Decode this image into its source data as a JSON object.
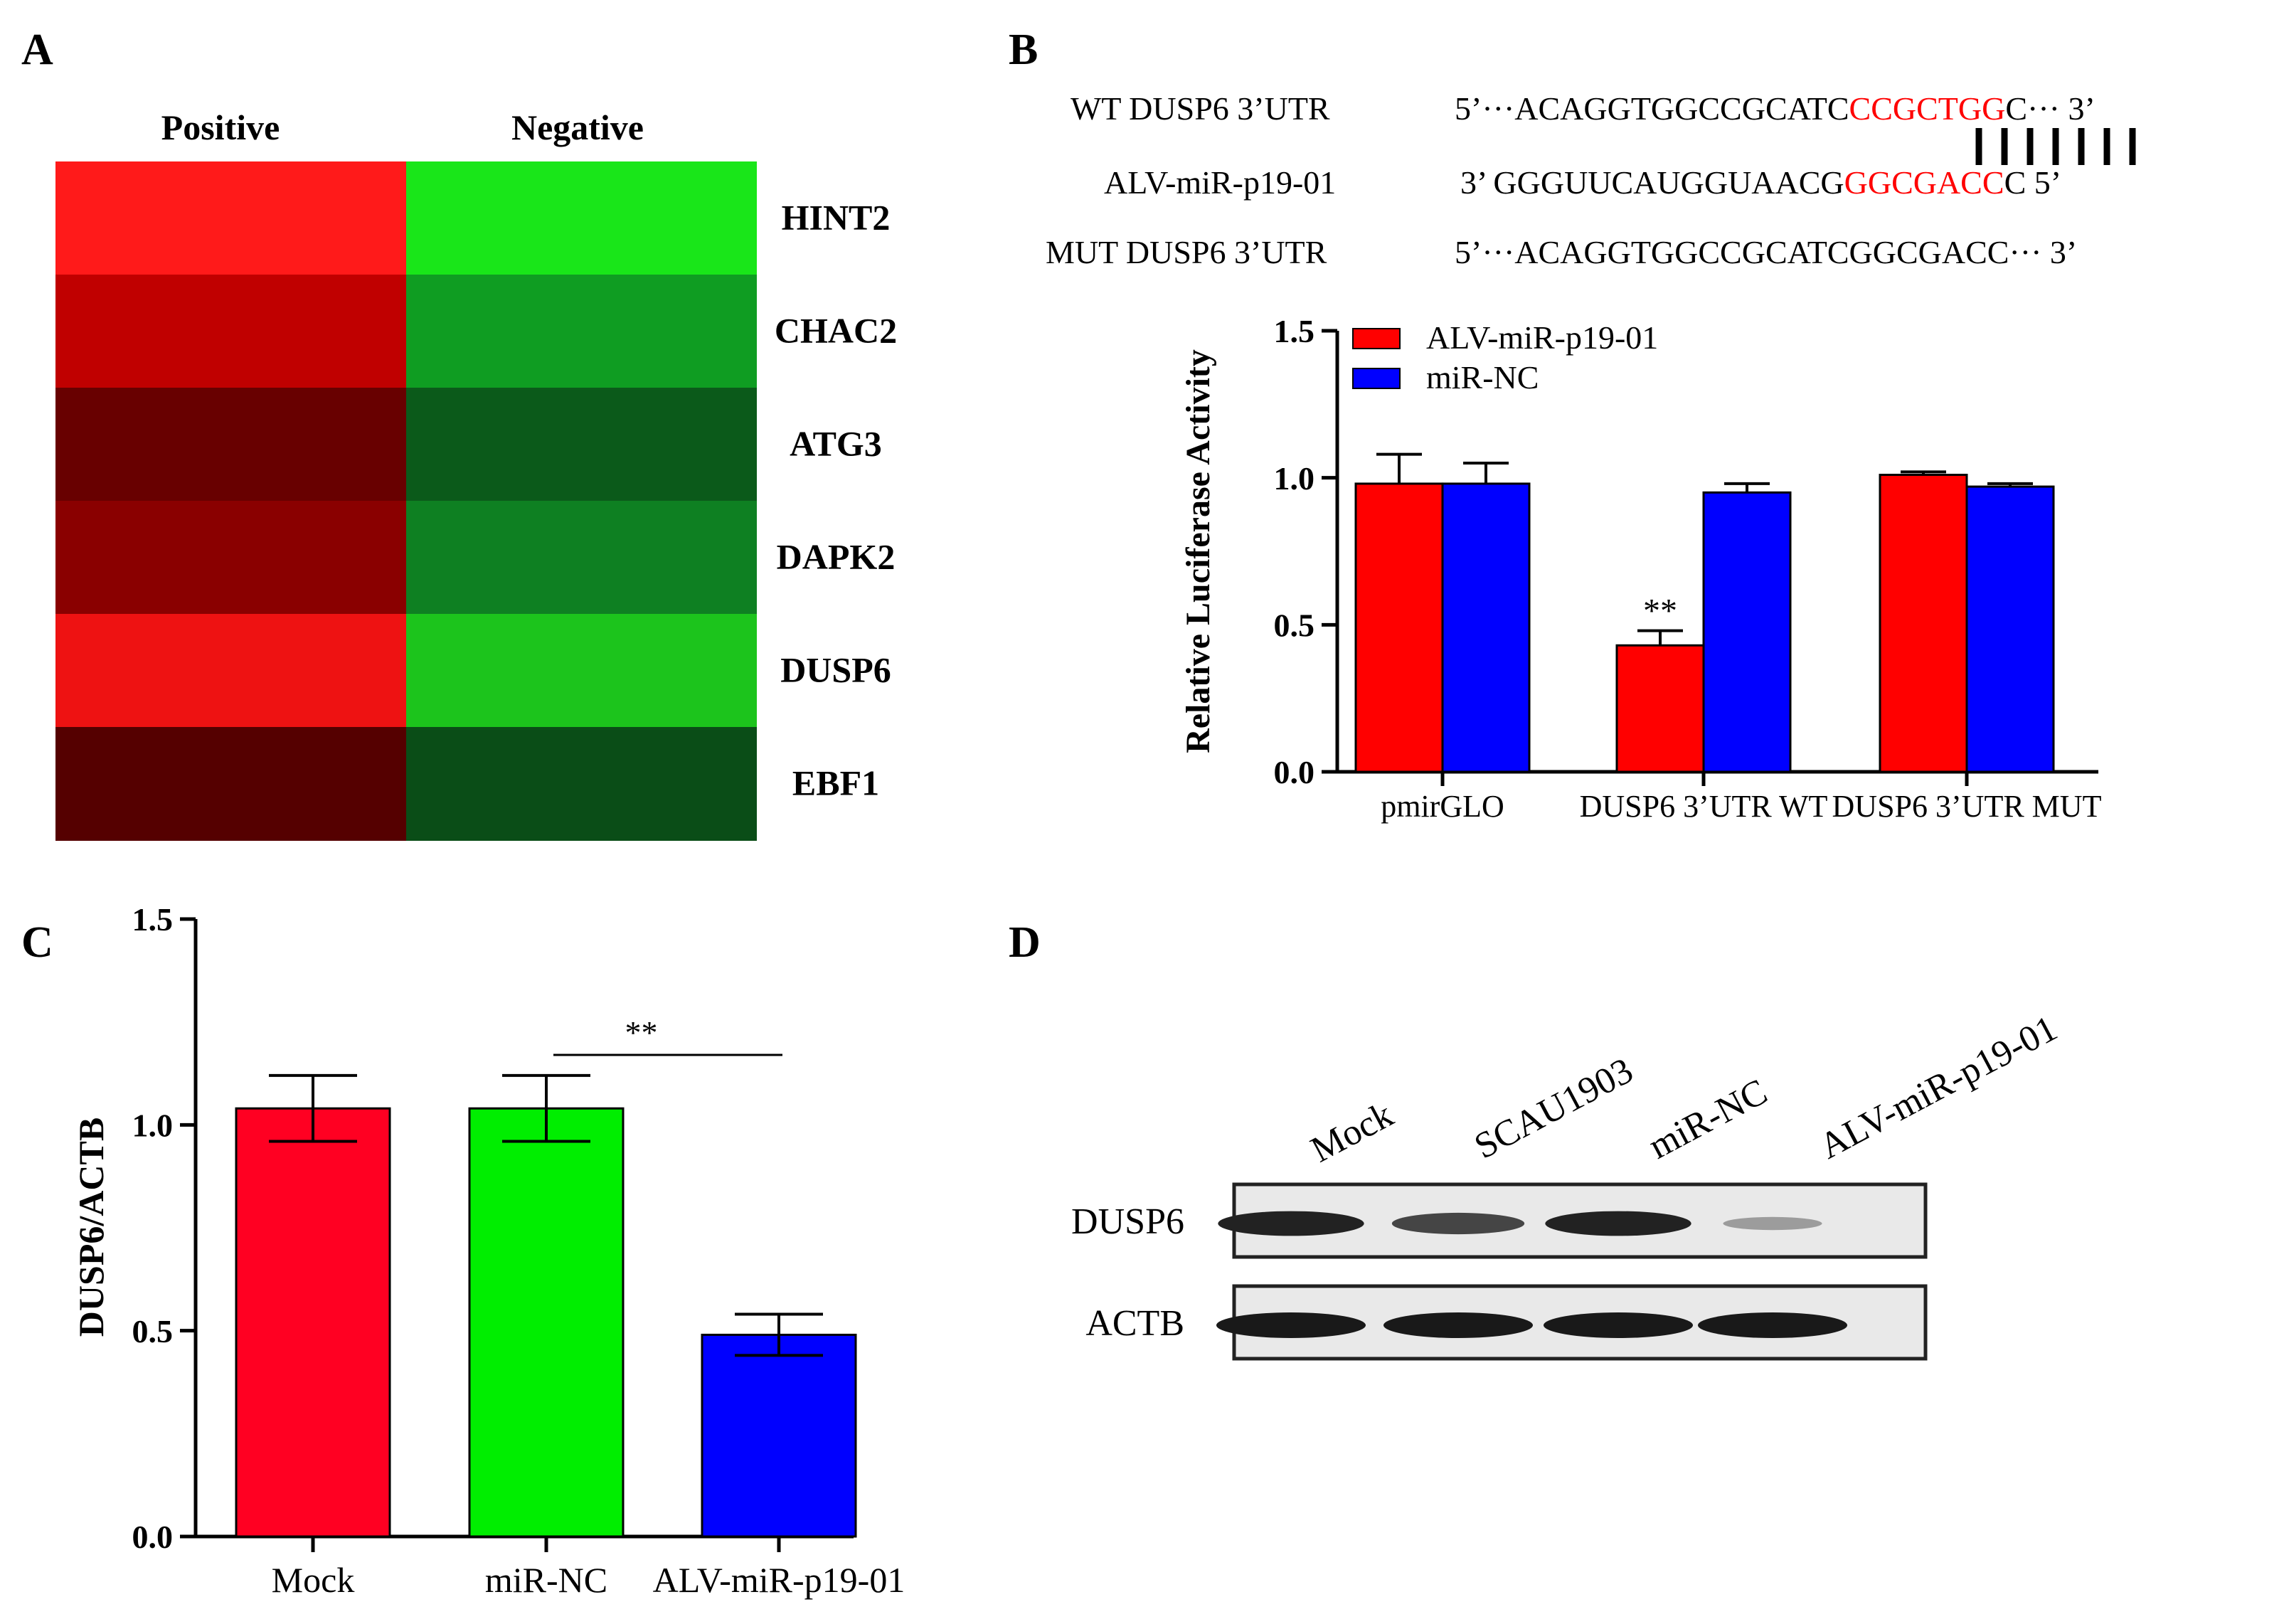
{
  "panels": {
    "a": "A",
    "b": "B",
    "c": "C",
    "d": "D"
  },
  "heatmap": {
    "columns": [
      "Positive",
      "Negative"
    ],
    "rows": [
      {
        "gene": "HINT2",
        "positive_color": "#ff1a1a",
        "negative_color": "#19e619"
      },
      {
        "gene": "CHAC2",
        "positive_color": "#c00000",
        "negative_color": "#0f9d22"
      },
      {
        "gene": "ATG3",
        "positive_color": "#680000",
        "negative_color": "#0b5a1a"
      },
      {
        "gene": "DAPK2",
        "positive_color": "#8a0000",
        "negative_color": "#0e8022"
      },
      {
        "gene": "DUSP6",
        "positive_color": "#ee1212",
        "negative_color": "#1cc41c"
      },
      {
        "gene": "EBF1",
        "positive_color": "#550000",
        "negative_color": "#0a4d17"
      }
    ]
  },
  "sequences": {
    "wt_label": "WT  DUSP6  3’UTR",
    "wt_seq_pre": "5’···ACAGGTGGCCGCATC",
    "wt_seq_red": "CCGCTGG",
    "wt_seq_post": "C··· 3’",
    "mir_label": "ALV-miR-p19-01",
    "mir_seq_pre": "3’ GGGUUCAUGGUAACG",
    "mir_seq_red": "GGCGACC",
    "mir_seq_post": "C  5’",
    "mut_label": "MUT  DUSP6  3’UTR",
    "mut_seq": "5’···ACAGGTGGCCGCATCGGCGACC···  3’",
    "highlight_color": "#ff0000"
  },
  "chart_data": [
    {
      "panel": "B",
      "type": "bar",
      "ylabel": "Relative Luciferase Activity",
      "xlabel": "",
      "ylim": [
        0,
        1.5
      ],
      "yticks": [
        "0.0",
        "0.5",
        "1.0",
        "1.5"
      ],
      "categories": [
        "pmirGLO",
        "DUSP6 3’UTR WT",
        "DUSP6 3’UTR MUT"
      ],
      "legend_position": "top-left",
      "series": [
        {
          "name": "ALV-miR-p19-01",
          "color": "#ff0000",
          "values": [
            0.98,
            0.43,
            1.01
          ],
          "errors": [
            0.1,
            0.05,
            0.01
          ]
        },
        {
          "name": "miR-NC",
          "color": "#0000ff",
          "values": [
            0.98,
            0.95,
            0.97
          ],
          "errors": [
            0.07,
            0.03,
            0.01
          ]
        }
      ],
      "annotations": [
        {
          "text": "**",
          "category": "DUSP6 3’UTR WT",
          "series": "ALV-miR-p19-01"
        }
      ]
    },
    {
      "panel": "C",
      "type": "bar",
      "ylabel": "DUSP6/ACTB",
      "xlabel": "",
      "ylim": [
        0,
        1.5
      ],
      "yticks": [
        "0.0",
        "0.5",
        "1.0",
        "1.5"
      ],
      "categories": [
        "Mock",
        "miR-NC",
        "ALV-miR-p19-01"
      ],
      "colors": [
        "#ff0022",
        "#00ee00",
        "#0000ff"
      ],
      "values": [
        1.04,
        1.04,
        0.49
      ],
      "errors": [
        0.08,
        0.08,
        0.05
      ],
      "annotations": [
        {
          "text": "**",
          "between": [
            "miR-NC",
            "ALV-miR-p19-01"
          ]
        }
      ]
    }
  ],
  "blot": {
    "lanes": [
      "Mock",
      "SCAU1903",
      "miR-NC",
      "ALV-miR-p19-01"
    ],
    "rows": [
      {
        "name": "DUSP6",
        "intensities": [
          0.95,
          0.75,
          0.95,
          0.25
        ]
      },
      {
        "name": "ACTB",
        "intensities": [
          1.0,
          1.0,
          1.0,
          1.0
        ]
      }
    ]
  }
}
